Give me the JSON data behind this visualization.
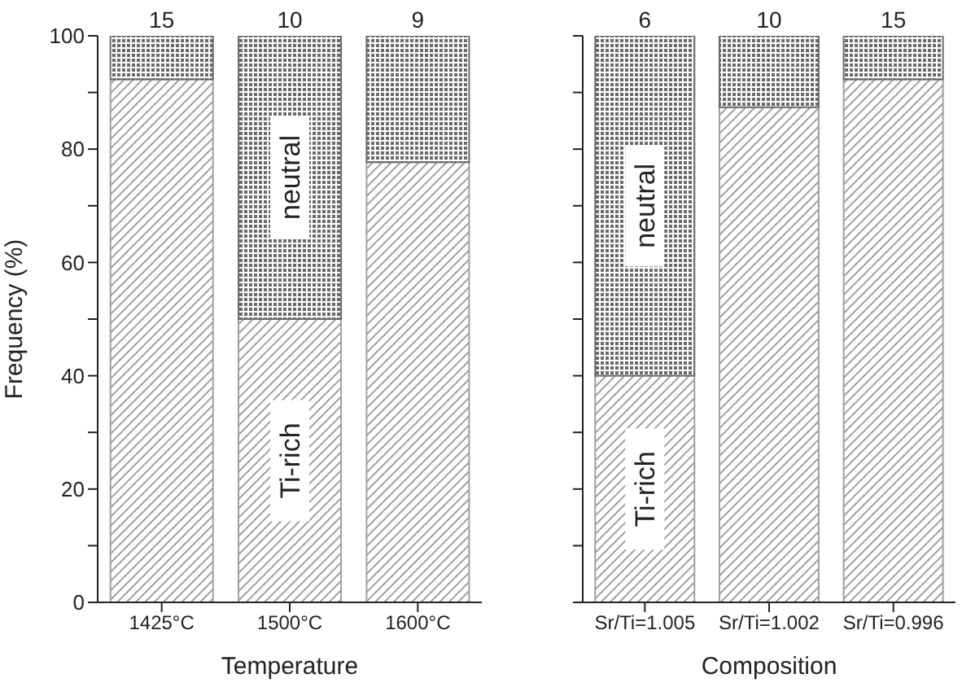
{
  "chart_data": [
    {
      "type": "bar",
      "stacked": true,
      "xlabel": "Temperature",
      "ylabel": "Frequency (%)",
      "categories": [
        "1425°C",
        "1500°C",
        "1600°C"
      ],
      "ylim": [
        0,
        100
      ],
      "yticks": [
        0,
        {
          "value": 10,
          "label": null
        },
        20,
        {
          "value": 30,
          "label": null
        },
        40,
        {
          "value": 50,
          "label": null
        },
        60,
        {
          "value": 70,
          "label": null
        },
        80,
        {
          "value": 90,
          "label": null
        },
        100
      ],
      "series": [
        {
          "name": "Ti-rich",
          "color": "#a0a0a0",
          "values": [
            92.3,
            50,
            77.7
          ]
        },
        {
          "name": "neutral",
          "color": "#6a6a6a",
          "values": [
            7.7,
            50,
            22.3
          ]
        }
      ],
      "annotations": [
        {
          "text": "15",
          "x": "1425°C",
          "y": 100
        },
        {
          "text": "10",
          "x": "1500°C",
          "y": 100
        },
        {
          "text": "9",
          "x": "1600°C",
          "y": 100
        }
      ]
    },
    {
      "type": "bar",
      "stacked": true,
      "xlabel": "Composition",
      "categories": [
        "Sr/Ti=1.005",
        "Sr/Ti=1.002",
        "Sr/Ti=0.996"
      ],
      "ylim": [
        0,
        100
      ],
      "yticks": [
        {
          "value": 0,
          "label": null
        },
        {
          "value": 10,
          "label": null
        },
        {
          "value": 20,
          "label": null
        },
        {
          "value": 30,
          "label": null
        },
        {
          "value": 40,
          "label": null
        },
        {
          "value": 50,
          "label": null
        },
        {
          "value": 60,
          "label": null
        },
        {
          "value": 70,
          "label": null
        },
        {
          "value": 80,
          "label": null
        },
        {
          "value": 90,
          "label": null
        },
        {
          "value": 100,
          "label": null
        }
      ],
      "tick_labels": "x",
      "series": [
        {
          "name": "Ti-rich",
          "color": "#a0a0a0",
          "values": [
            40,
            87.4,
            92.3
          ]
        },
        {
          "name": "neutral",
          "color": "#6a6a6a",
          "values": [
            60,
            12.6,
            7.7
          ]
        }
      ],
      "annotations": [
        {
          "text": "6",
          "x": "Sr/Ti=1.005",
          "y": 100
        },
        {
          "text": "10",
          "x": "Sr/Ti=1.002",
          "y": 100
        },
        {
          "text": "15",
          "x": "Sr/Ti=0.996",
          "y": 100
        }
      ]
    }
  ]
}
